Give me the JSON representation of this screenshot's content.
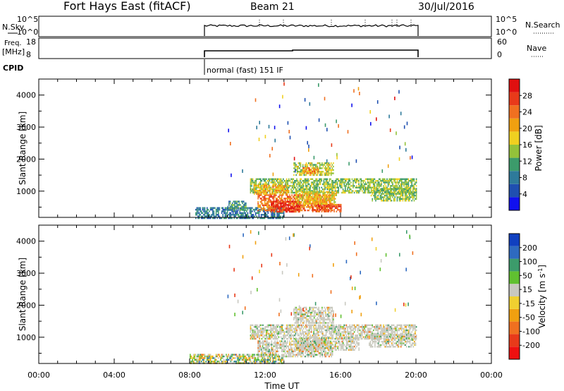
{
  "header": {
    "station": "Fort Hays East (fitACF)",
    "beam": "Beam 21",
    "date": "30/Jul/2016"
  },
  "nsky_panel": {
    "left_label": "N.Sky",
    "right_label": "N.Search",
    "left_ticks": [
      "10^5",
      "10^0"
    ],
    "right_ticks": [
      "10^5",
      "10^0"
    ]
  },
  "freq_panel": {
    "left_label": "Freq.",
    "left_unit": "[MHz]",
    "right_label": "Nave",
    "left_ticks": [
      "18",
      "8"
    ],
    "right_ticks": [
      "60",
      "0"
    ]
  },
  "cpid": {
    "label": "CPID",
    "mode": "normal (fast) 151 IF"
  },
  "colors": {
    "power_scale": [
      "#1010ee",
      "#1f4fb0",
      "#2e7a9a",
      "#3c9b6b",
      "#93c23a",
      "#f0d020",
      "#f0a010",
      "#f07020",
      "#e83a1a",
      "#e01010"
    ],
    "velocity_scale": [
      "#ee1010",
      "#e83a1a",
      "#f07020",
      "#f0a010",
      "#f0d030",
      "#c8c8c0",
      "#60c030",
      "#3c9b6b",
      "#2e6ac0",
      "#1040c0"
    ],
    "ground_scatter": "#c8c8bc"
  },
  "chart_data": [
    {
      "type": "heatmap",
      "name": "power",
      "ylabel": "Slant Range [km]",
      "xlabel": "",
      "x_range_hours": [
        0,
        24
      ],
      "ylim": [
        180,
        4500
      ],
      "y_ticks": [
        "1000",
        "2000",
        "3000",
        "4000"
      ],
      "colorbar": {
        "label": "Power [dB]",
        "range": [
          0,
          32
        ],
        "ticks": [
          "4",
          "8",
          "12",
          "16",
          "20",
          "24",
          "28"
        ]
      },
      "data_coverage_hours": [
        8,
        20
      ],
      "regions": [
        {
          "t": [
            8.3,
            13.0
          ],
          "r": [
            180,
            500
          ],
          "value": 8
        },
        {
          "t": [
            10.0,
            11.0
          ],
          "r": [
            400,
            700
          ],
          "value": 10
        },
        {
          "t": [
            11.6,
            15.6
          ],
          "r": [
            400,
            900
          ],
          "value": 24
        },
        {
          "t": [
            12.3,
            13.8
          ],
          "r": [
            350,
            700
          ],
          "value": 28
        },
        {
          "t": [
            14.5,
            16.0
          ],
          "r": [
            350,
            600
          ],
          "value": 26
        },
        {
          "t": [
            11.2,
            20.0
          ],
          "r": [
            950,
            1400
          ],
          "value": 14
        },
        {
          "t": [
            11.4,
            13.2
          ],
          "r": [
            900,
            1200
          ],
          "value": 20
        },
        {
          "t": [
            13.6,
            15.8
          ],
          "r": [
            600,
            1000
          ],
          "value": 18
        },
        {
          "t": [
            17.6,
            20.0
          ],
          "r": [
            700,
            1100
          ],
          "value": 14
        },
        {
          "t": [
            13.5,
            15.6
          ],
          "r": [
            1500,
            1900
          ],
          "value": 16
        },
        {
          "t": [
            14.0,
            14.8
          ],
          "r": [
            1550,
            1750
          ],
          "value": 22
        }
      ]
    },
    {
      "type": "heatmap",
      "name": "velocity",
      "ylabel": "Slant Range [km]",
      "xlabel": "Time UT",
      "x_range_hours": [
        0,
        24
      ],
      "ylim": [
        180,
        4500
      ],
      "y_ticks": [
        "1000",
        "2000",
        "3000",
        "4000"
      ],
      "x_ticks": [
        "00:00",
        "04:00",
        "08:00",
        "12:00",
        "16:00",
        "20:00",
        "00:00"
      ],
      "colorbar": {
        "label": "Velocity [m s^-1]",
        "range": [
          -250,
          250
        ],
        "ticks": [
          "200",
          "100",
          "50",
          "15",
          "-15",
          "-50",
          "-100",
          "-200"
        ]
      },
      "data_coverage_hours": [
        8,
        20
      ],
      "regions": [
        {
          "t": [
            8.0,
            13.0
          ],
          "r": [
            180,
            480
          ],
          "value": -40
        },
        {
          "t": [
            11.2,
            20.0
          ],
          "r": [
            950,
            1400
          ],
          "value": 0
        },
        {
          "t": [
            11.6,
            15.6
          ],
          "r": [
            400,
            900
          ],
          "value": 0
        },
        {
          "t": [
            13.6,
            17.0
          ],
          "r": [
            600,
            1000
          ],
          "value": 0
        },
        {
          "t": [
            13.5,
            15.6
          ],
          "r": [
            1450,
            1950
          ],
          "value": 0
        },
        {
          "t": [
            17.5,
            20.0
          ],
          "r": [
            700,
            1100
          ],
          "value": 0
        }
      ]
    }
  ]
}
